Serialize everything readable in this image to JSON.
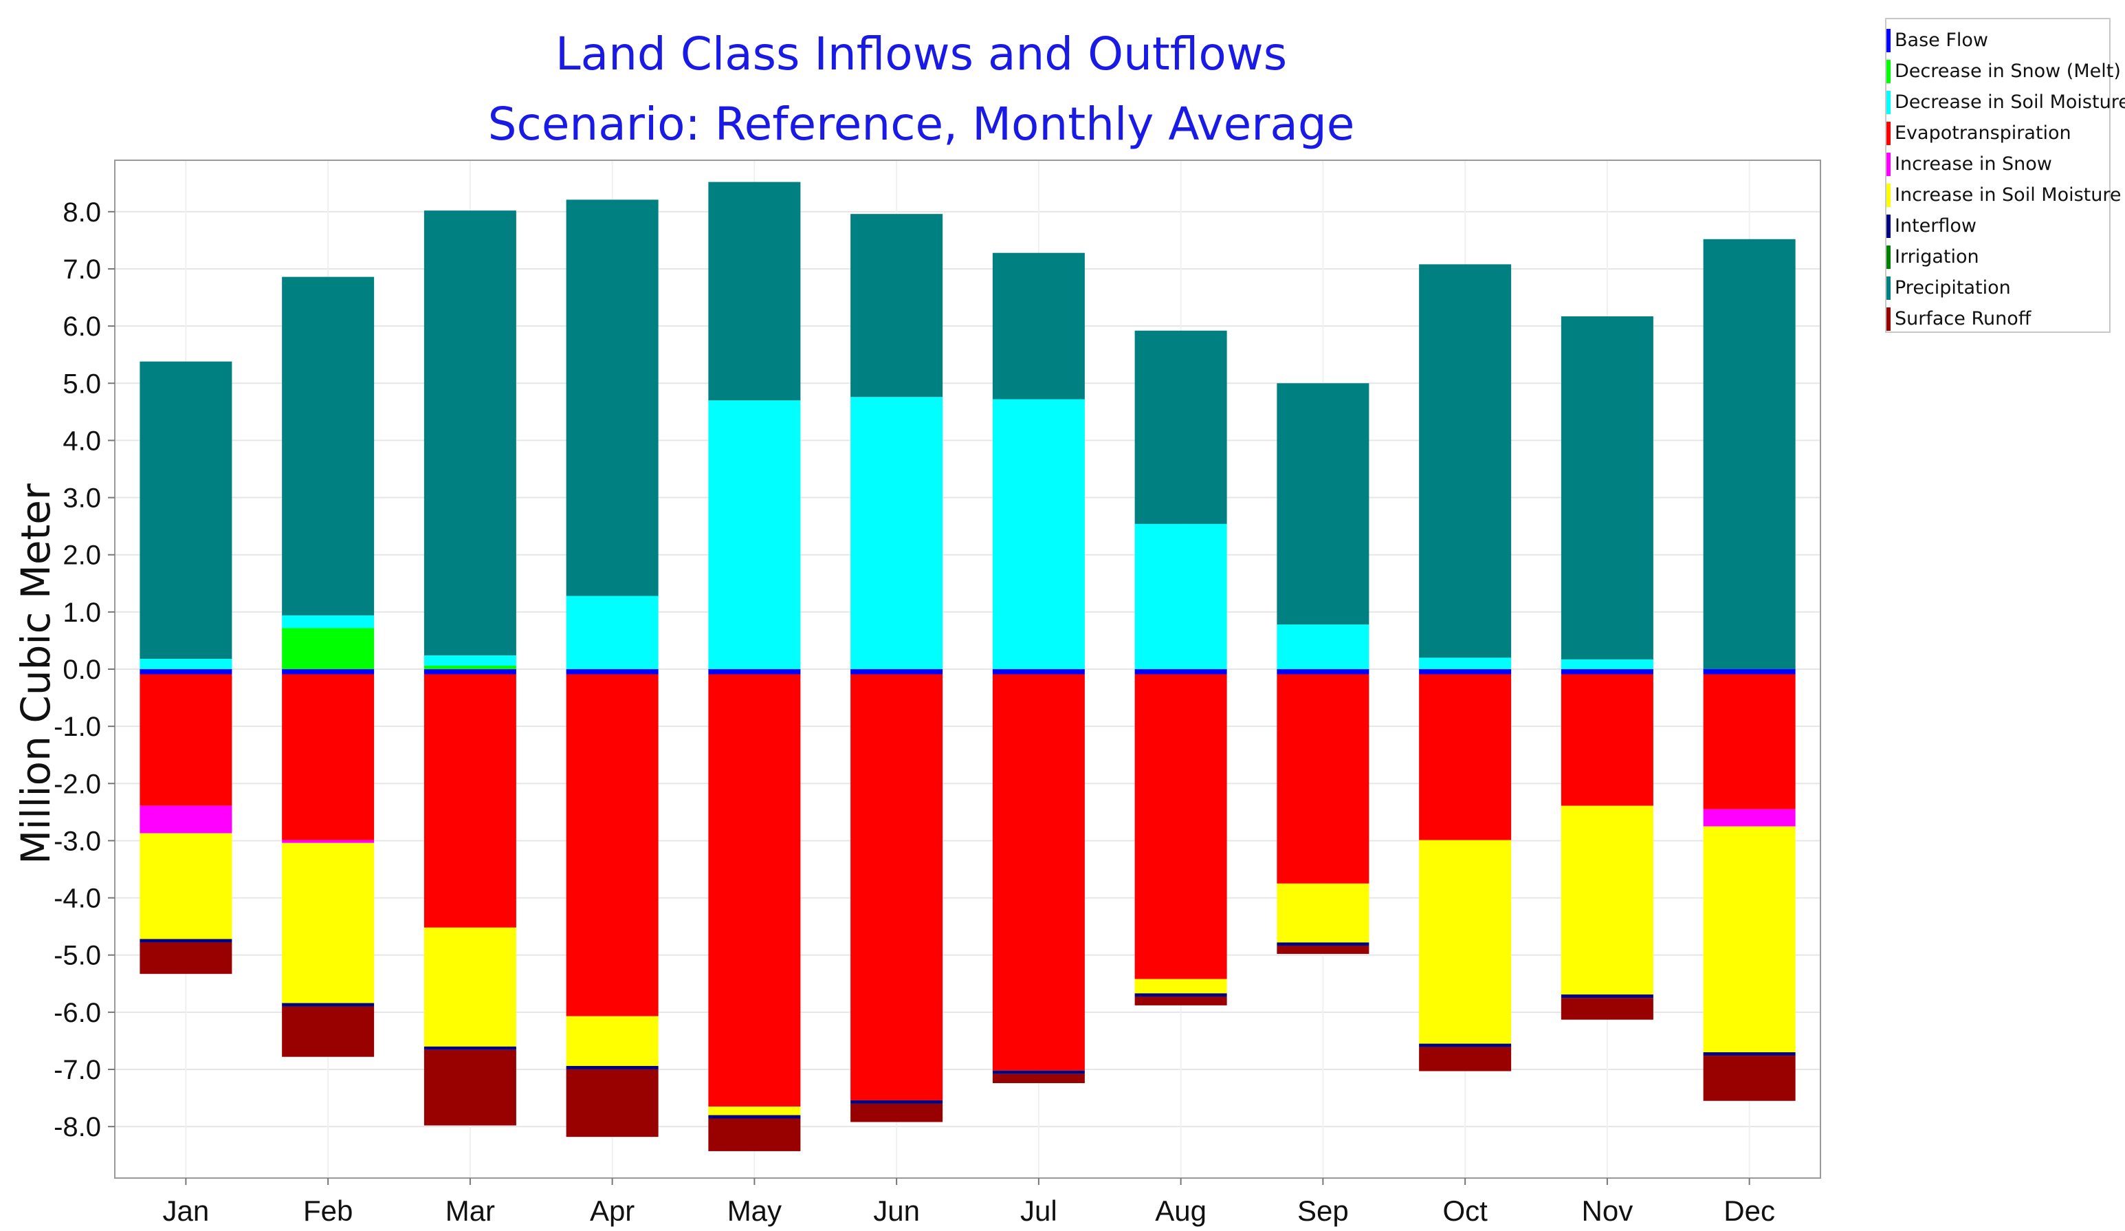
{
  "chart_data": {
    "type": "bar",
    "stacked": true,
    "title": "Land Class Inflows and Outflows",
    "subtitle": "Scenario: Reference,  Monthly Average",
    "xlabel": "",
    "ylabel": "Million Cubic Meter",
    "ylim": [
      -8.9,
      8.9
    ],
    "yticks": [
      8.0,
      7.0,
      6.0,
      5.0,
      4.0,
      3.0,
      2.0,
      1.0,
      0.0,
      -1.0,
      -2.0,
      -3.0,
      -4.0,
      -5.0,
      -6.0,
      -7.0,
      -8.0
    ],
    "ytick_labels": [
      "8.0",
      "7.0",
      "6.0",
      "5.0",
      "4.0",
      "3.0",
      "2.0",
      "1.0",
      "0.0",
      "-1.0",
      "-2.0",
      "-3.0",
      "-4.0",
      "-5.0",
      "-6.0",
      "-7.0",
      "-8.0"
    ],
    "grid": true,
    "legend_position": "top-right",
    "categories": [
      "Jan",
      "Feb",
      "Mar",
      "Apr",
      "May",
      "Jun",
      "Jul",
      "Aug",
      "Sep",
      "Oct",
      "Nov",
      "Dec"
    ],
    "series": [
      {
        "name": "Base Flow",
        "color": "#0000ff",
        "values": [
          -0.09,
          -0.09,
          -0.09,
          -0.09,
          -0.09,
          -0.09,
          -0.09,
          -0.09,
          -0.09,
          -0.09,
          -0.09,
          -0.09
        ]
      },
      {
        "name": "Decrease in Snow (Melt)",
        "color": "#00ff00",
        "values": [
          0,
          0.72,
          0.06,
          0,
          0,
          0,
          0,
          0,
          0,
          0,
          0,
          0
        ]
      },
      {
        "name": "Decrease in Soil Moisture",
        "color": "#00ffff",
        "values": [
          0.18,
          0.22,
          0.18,
          1.28,
          4.7,
          4.76,
          4.72,
          2.54,
          0.78,
          0.2,
          0.17,
          0
        ]
      },
      {
        "name": "Evapotranspiration",
        "color": "#ff0000",
        "values": [
          -2.3,
          -2.9,
          -4.43,
          -5.98,
          -7.56,
          -7.45,
          -6.93,
          -5.33,
          -3.66,
          -2.9,
          -2.3,
          -2.36
        ]
      },
      {
        "name": "Increase in Snow",
        "color": "#ff00ff",
        "values": [
          -0.48,
          -0.05,
          0,
          0,
          0,
          0,
          0,
          0,
          0,
          0,
          0,
          -0.3
        ]
      },
      {
        "name": "Increase in Soil Moisture",
        "color": "#ffff00",
        "values": [
          -1.85,
          -2.8,
          -2.08,
          -0.87,
          -0.15,
          0,
          0,
          -0.25,
          -1.03,
          -3.56,
          -3.3,
          -3.95
        ]
      },
      {
        "name": "Interflow",
        "color": "#000080",
        "values": [
          -0.06,
          -0.06,
          -0.06,
          -0.06,
          -0.06,
          -0.06,
          -0.06,
          -0.06,
          -0.06,
          -0.06,
          -0.06,
          -0.06
        ]
      },
      {
        "name": "Irrigation",
        "color": "#008000",
        "values": [
          0,
          0,
          0,
          0,
          0,
          0,
          0,
          0,
          0,
          0,
          0,
          0
        ]
      },
      {
        "name": "Precipitation",
        "color": "#008080",
        "values": [
          5.2,
          5.92,
          7.78,
          6.93,
          3.82,
          3.2,
          2.56,
          3.38,
          4.22,
          6.88,
          6.0,
          7.52
        ]
      },
      {
        "name": "Surface Runoff",
        "color": "#990000",
        "values": [
          -0.55,
          -0.88,
          -1.32,
          -1.18,
          -0.57,
          -0.32,
          -0.16,
          -0.15,
          -0.14,
          -0.42,
          -0.38,
          -0.79
        ]
      }
    ]
  }
}
